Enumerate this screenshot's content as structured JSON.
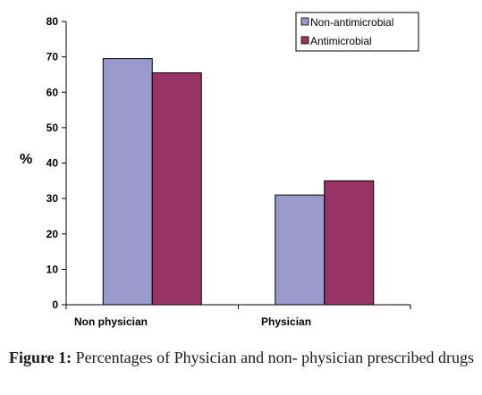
{
  "chart_data": {
    "type": "bar",
    "categories": [
      "Non physician",
      "Physician"
    ],
    "series": [
      {
        "name": "Non-antimicrobial",
        "values": [
          69.5,
          31
        ],
        "color": "#9999cc"
      },
      {
        "name": "Antimicrobial",
        "values": [
          65.5,
          35
        ],
        "color": "#993366"
      }
    ],
    "ylabel": "%",
    "ylim": [
      0,
      80
    ],
    "yticks": [
      0,
      10,
      20,
      30,
      40,
      50,
      60,
      70,
      80
    ],
    "grid": false,
    "legend_position": "top-right"
  },
  "caption": {
    "label": "Figure 1:",
    "text": " Percentages of Physician and non- physician prescribed drugs"
  }
}
